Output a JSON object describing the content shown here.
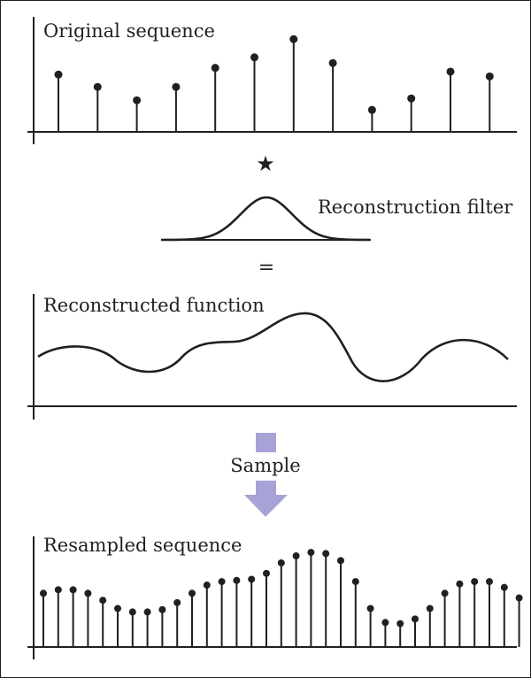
{
  "labels": {
    "original_sequence": "Original sequence",
    "convolution_symbol": "★",
    "reconstruction_filter": "Reconstruction filter",
    "equals_symbol": "=",
    "reconstructed_function": "Reconstructed function",
    "sample": "Sample",
    "resampled_sequence": "Resampled sequence"
  },
  "colors": {
    "ink": "#231f20",
    "arrow": "#a7a3d6"
  },
  "original_sequence": [
    0.6,
    0.47,
    0.33,
    0.47,
    0.67,
    0.78,
    0.97,
    0.72,
    0.23,
    0.35,
    0.63,
    0.58
  ],
  "resampled_sequence": [
    0.46,
    0.49,
    0.49,
    0.46,
    0.4,
    0.33,
    0.3,
    0.3,
    0.32,
    0.38,
    0.46,
    0.53,
    0.56,
    0.57,
    0.58,
    0.63,
    0.72,
    0.78,
    0.81,
    0.8,
    0.74,
    0.56,
    0.33,
    0.21,
    0.2,
    0.24,
    0.33,
    0.46,
    0.54,
    0.56,
    0.56,
    0.51,
    0.42
  ]
}
